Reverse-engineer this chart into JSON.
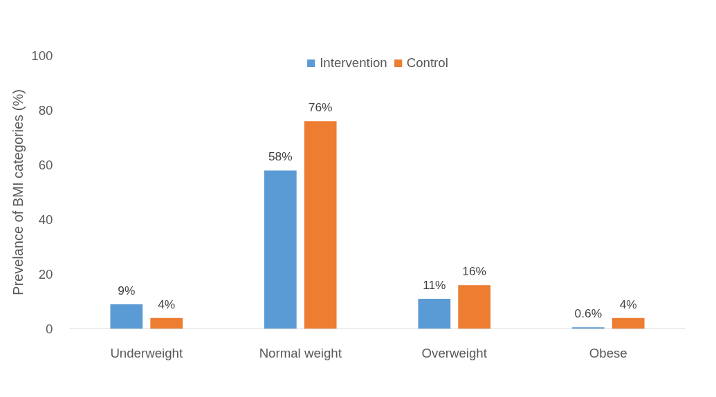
{
  "chart_data": {
    "type": "bar",
    "ylabel": "Prevelance of BMI categories (%)",
    "categories": [
      "Underweight",
      "Normal weight",
      "Overweight",
      "Obese"
    ],
    "series": [
      {
        "name": "Intervention",
        "color": "#5b9bd5",
        "values": [
          9,
          58,
          11,
          0.6
        ],
        "value_labels": [
          "9%",
          "58%",
          "11%",
          "0.6%"
        ]
      },
      {
        "name": "Control",
        "color": "#ed7d31",
        "values": [
          4,
          76,
          16,
          4
        ],
        "value_labels": [
          "4%",
          "76%",
          "16%",
          "4%"
        ]
      }
    ],
    "ylim": [
      0,
      100
    ],
    "yticks": [
      0,
      20,
      40,
      60,
      80,
      100
    ],
    "grid": false,
    "legend": "top"
  }
}
